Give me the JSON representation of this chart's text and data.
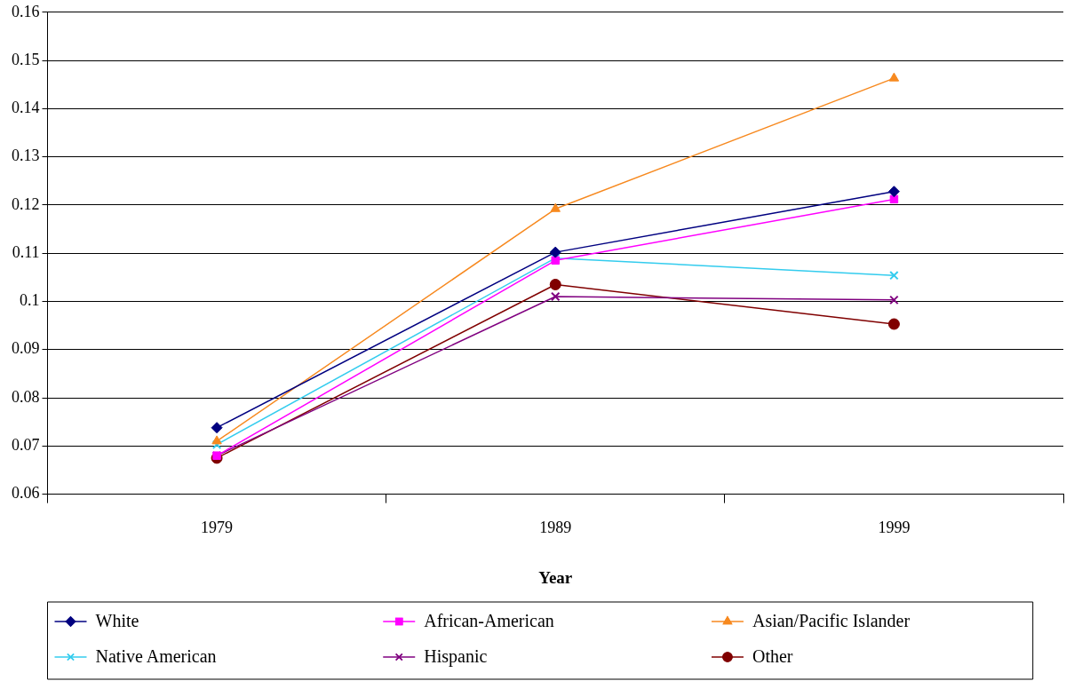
{
  "chart_data": {
    "type": "line",
    "xlabel": "Year",
    "categories": [
      "1979",
      "1989",
      "1999"
    ],
    "ylim": [
      0.06,
      0.16
    ],
    "yticks": [
      0.06,
      0.07,
      0.08,
      0.09,
      0.1,
      0.11,
      0.12,
      0.13,
      0.14,
      0.15,
      0.16
    ],
    "grid": "y",
    "legend": "bottom",
    "line_style": "solid",
    "series": [
      {
        "name": "White",
        "color": "#000080",
        "marker": "diamond",
        "values": [
          0.0738,
          0.1102,
          0.1228
        ]
      },
      {
        "name": "African-American",
        "color": "#ff00ff",
        "marker": "square",
        "values": [
          0.068,
          0.1085,
          0.1212
        ]
      },
      {
        "name": "Asian/Pacific Islander",
        "color": "#f7891f",
        "marker": "triangle",
        "values": [
          0.071,
          0.1192,
          0.1463
        ]
      },
      {
        "name": "Native American",
        "color": "#33ccee",
        "marker": "cross",
        "values": [
          0.0703,
          0.109,
          0.1054
        ]
      },
      {
        "name": "Hispanic",
        "color": "#800080",
        "marker": "cross",
        "values": [
          0.068,
          0.101,
          0.1003
        ]
      },
      {
        "name": "Other",
        "color": "#800000",
        "marker": "circle",
        "values": [
          0.0675,
          0.1035,
          0.0953
        ]
      }
    ]
  }
}
